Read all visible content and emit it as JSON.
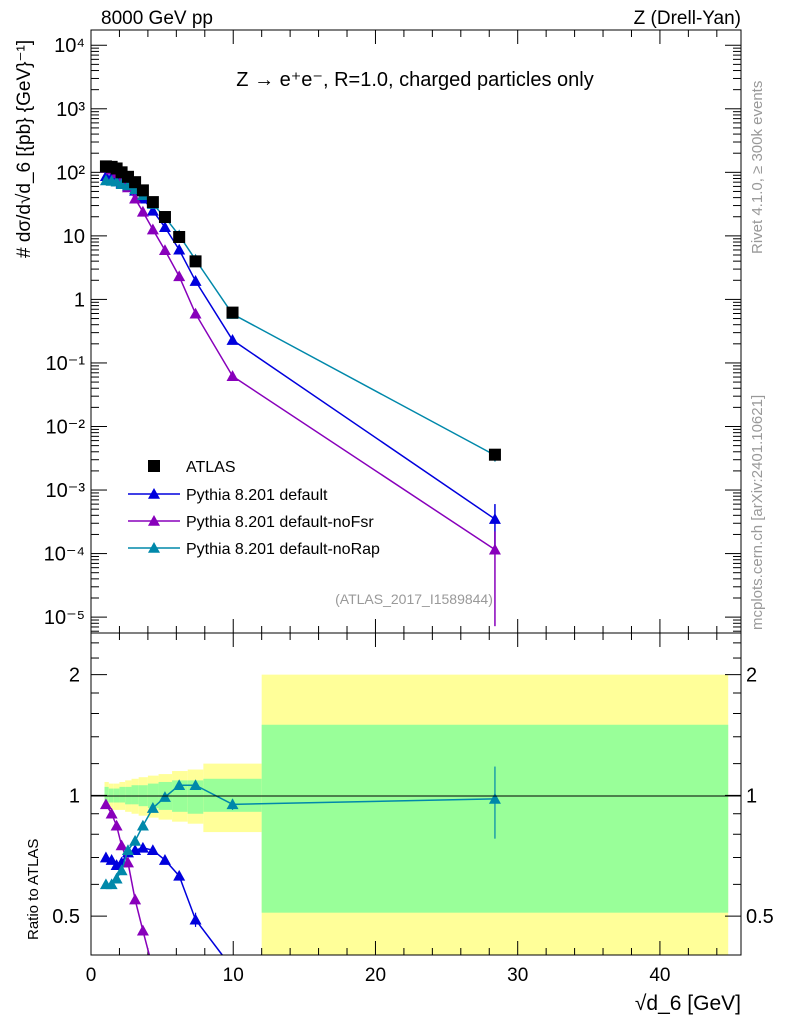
{
  "header": {
    "left": "8000 GeV pp",
    "right": "Z (Drell-Yan)",
    "process": "Z → e⁺e⁻, R=1.0, charged particles only",
    "analysis_id": "(ATLAS_2017_I1589844)",
    "side_top": "Rivet 4.1.0, ≥ 300k events",
    "side_bottom": "mcplots.cern.ch [arXiv:2401.10621]"
  },
  "chart_data": {
    "type": "line",
    "title": "Z → e⁺e⁻, R=1.0, charged particles only",
    "xlabel": "√d_6 [GeV]",
    "ylabel": "# dσ/d√d_6 [{pb} {GeV}⁻¹]",
    "ratio_ylabel": "Ratio to ATLAS",
    "xlim": [
      0,
      45.7
    ],
    "ylim_log10": [
      -5.25,
      4.24
    ],
    "ratio_ylim": [
      0.4,
      2.54
    ],
    "x_ticks": [
      "0",
      "10",
      "20",
      "30",
      "40"
    ],
    "x_tick_values": [
      0,
      10,
      20,
      30,
      40
    ],
    "y_ticks": [
      "10⁴",
      "10³",
      "10²",
      "10",
      "1",
      "10⁻¹",
      "10⁻²",
      "10⁻³",
      "10⁻⁴",
      "10⁻⁵"
    ],
    "y_tick_exponents": [
      4,
      3,
      2,
      1,
      0,
      -1,
      -2,
      -3,
      -4,
      -5
    ],
    "ratio_ticks": [
      "2",
      "1",
      "0.5"
    ],
    "ratio_tick_values": [
      2,
      1,
      0.5
    ],
    "x": [
      1.05,
      1.45,
      1.8,
      2.15,
      2.6,
      3.1,
      3.65,
      4.35,
      5.2,
      6.2,
      7.35,
      9.95,
      28.4
    ],
    "bin_edges": [
      0.95,
      1.25,
      1.6,
      2.0,
      2.4,
      2.85,
      3.35,
      4.0,
      4.75,
      5.7,
      6.8,
      7.9,
      12.0,
      44.8
    ],
    "data": {
      "name": "ATLAS",
      "values": [
        124,
        122,
        115,
        100,
        85,
        70,
        52,
        34,
        19.8,
        9.6,
        3.97,
        0.62,
        0.0036
      ],
      "band_total_up": [
        1.08,
        1.07,
        1.07,
        1.08,
        1.09,
        1.1,
        1.11,
        1.12,
        1.13,
        1.15,
        1.16,
        1.2,
        2.0
      ],
      "band_total_down": [
        0.93,
        0.92,
        0.92,
        0.92,
        0.91,
        0.9,
        0.89,
        0.88,
        0.87,
        0.86,
        0.85,
        0.81,
        0.3
      ],
      "band_stat_up": [
        1.05,
        1.04,
        1.04,
        1.05,
        1.05,
        1.06,
        1.06,
        1.07,
        1.08,
        1.09,
        1.09,
        1.1,
        1.5
      ],
      "band_stat_down": [
        0.96,
        0.96,
        0.96,
        0.96,
        0.95,
        0.95,
        0.94,
        0.93,
        0.92,
        0.91,
        0.9,
        0.91,
        0.51
      ]
    },
    "series": [
      {
        "name": "Pythia 8.201 default",
        "color": "#0000dd",
        "ratio": [
          0.7,
          0.69,
          0.67,
          0.68,
          0.72,
          0.73,
          0.74,
          0.73,
          0.69,
          0.63,
          0.49,
          0.37,
          0.097
        ],
        "ratio_err": [
          0,
          0,
          0,
          0,
          0,
          0,
          0,
          0,
          0,
          0.01,
          0.02,
          0.02,
          0.07
        ]
      },
      {
        "name": "Pythia 8.201 default-noFsr",
        "color": "#8800bb",
        "ratio": [
          0.95,
          0.9,
          0.84,
          0.75,
          0.68,
          0.55,
          0.46,
          0.37,
          0.3,
          0.24,
          0.15,
          0.1,
          0.032
        ],
        "ratio_err": [
          0,
          0,
          0,
          0,
          0,
          0,
          0,
          0,
          0,
          0,
          0,
          0,
          0.03
        ]
      },
      {
        "name": "Pythia 8.201 default-noRap",
        "color": "#0088aa",
        "ratio": [
          0.6,
          0.6,
          0.62,
          0.65,
          0.73,
          0.77,
          0.84,
          0.93,
          0.99,
          1.06,
          1.06,
          0.95,
          0.98
        ],
        "ratio_err": [
          0,
          0,
          0,
          0,
          0,
          0,
          0,
          0,
          0,
          0.01,
          0.02,
          0.03,
          0.2
        ]
      }
    ],
    "legend_placement": "bottom-left",
    "colors": {
      "band_total": "#ffff99",
      "band_stat": "#99ff99"
    }
  }
}
